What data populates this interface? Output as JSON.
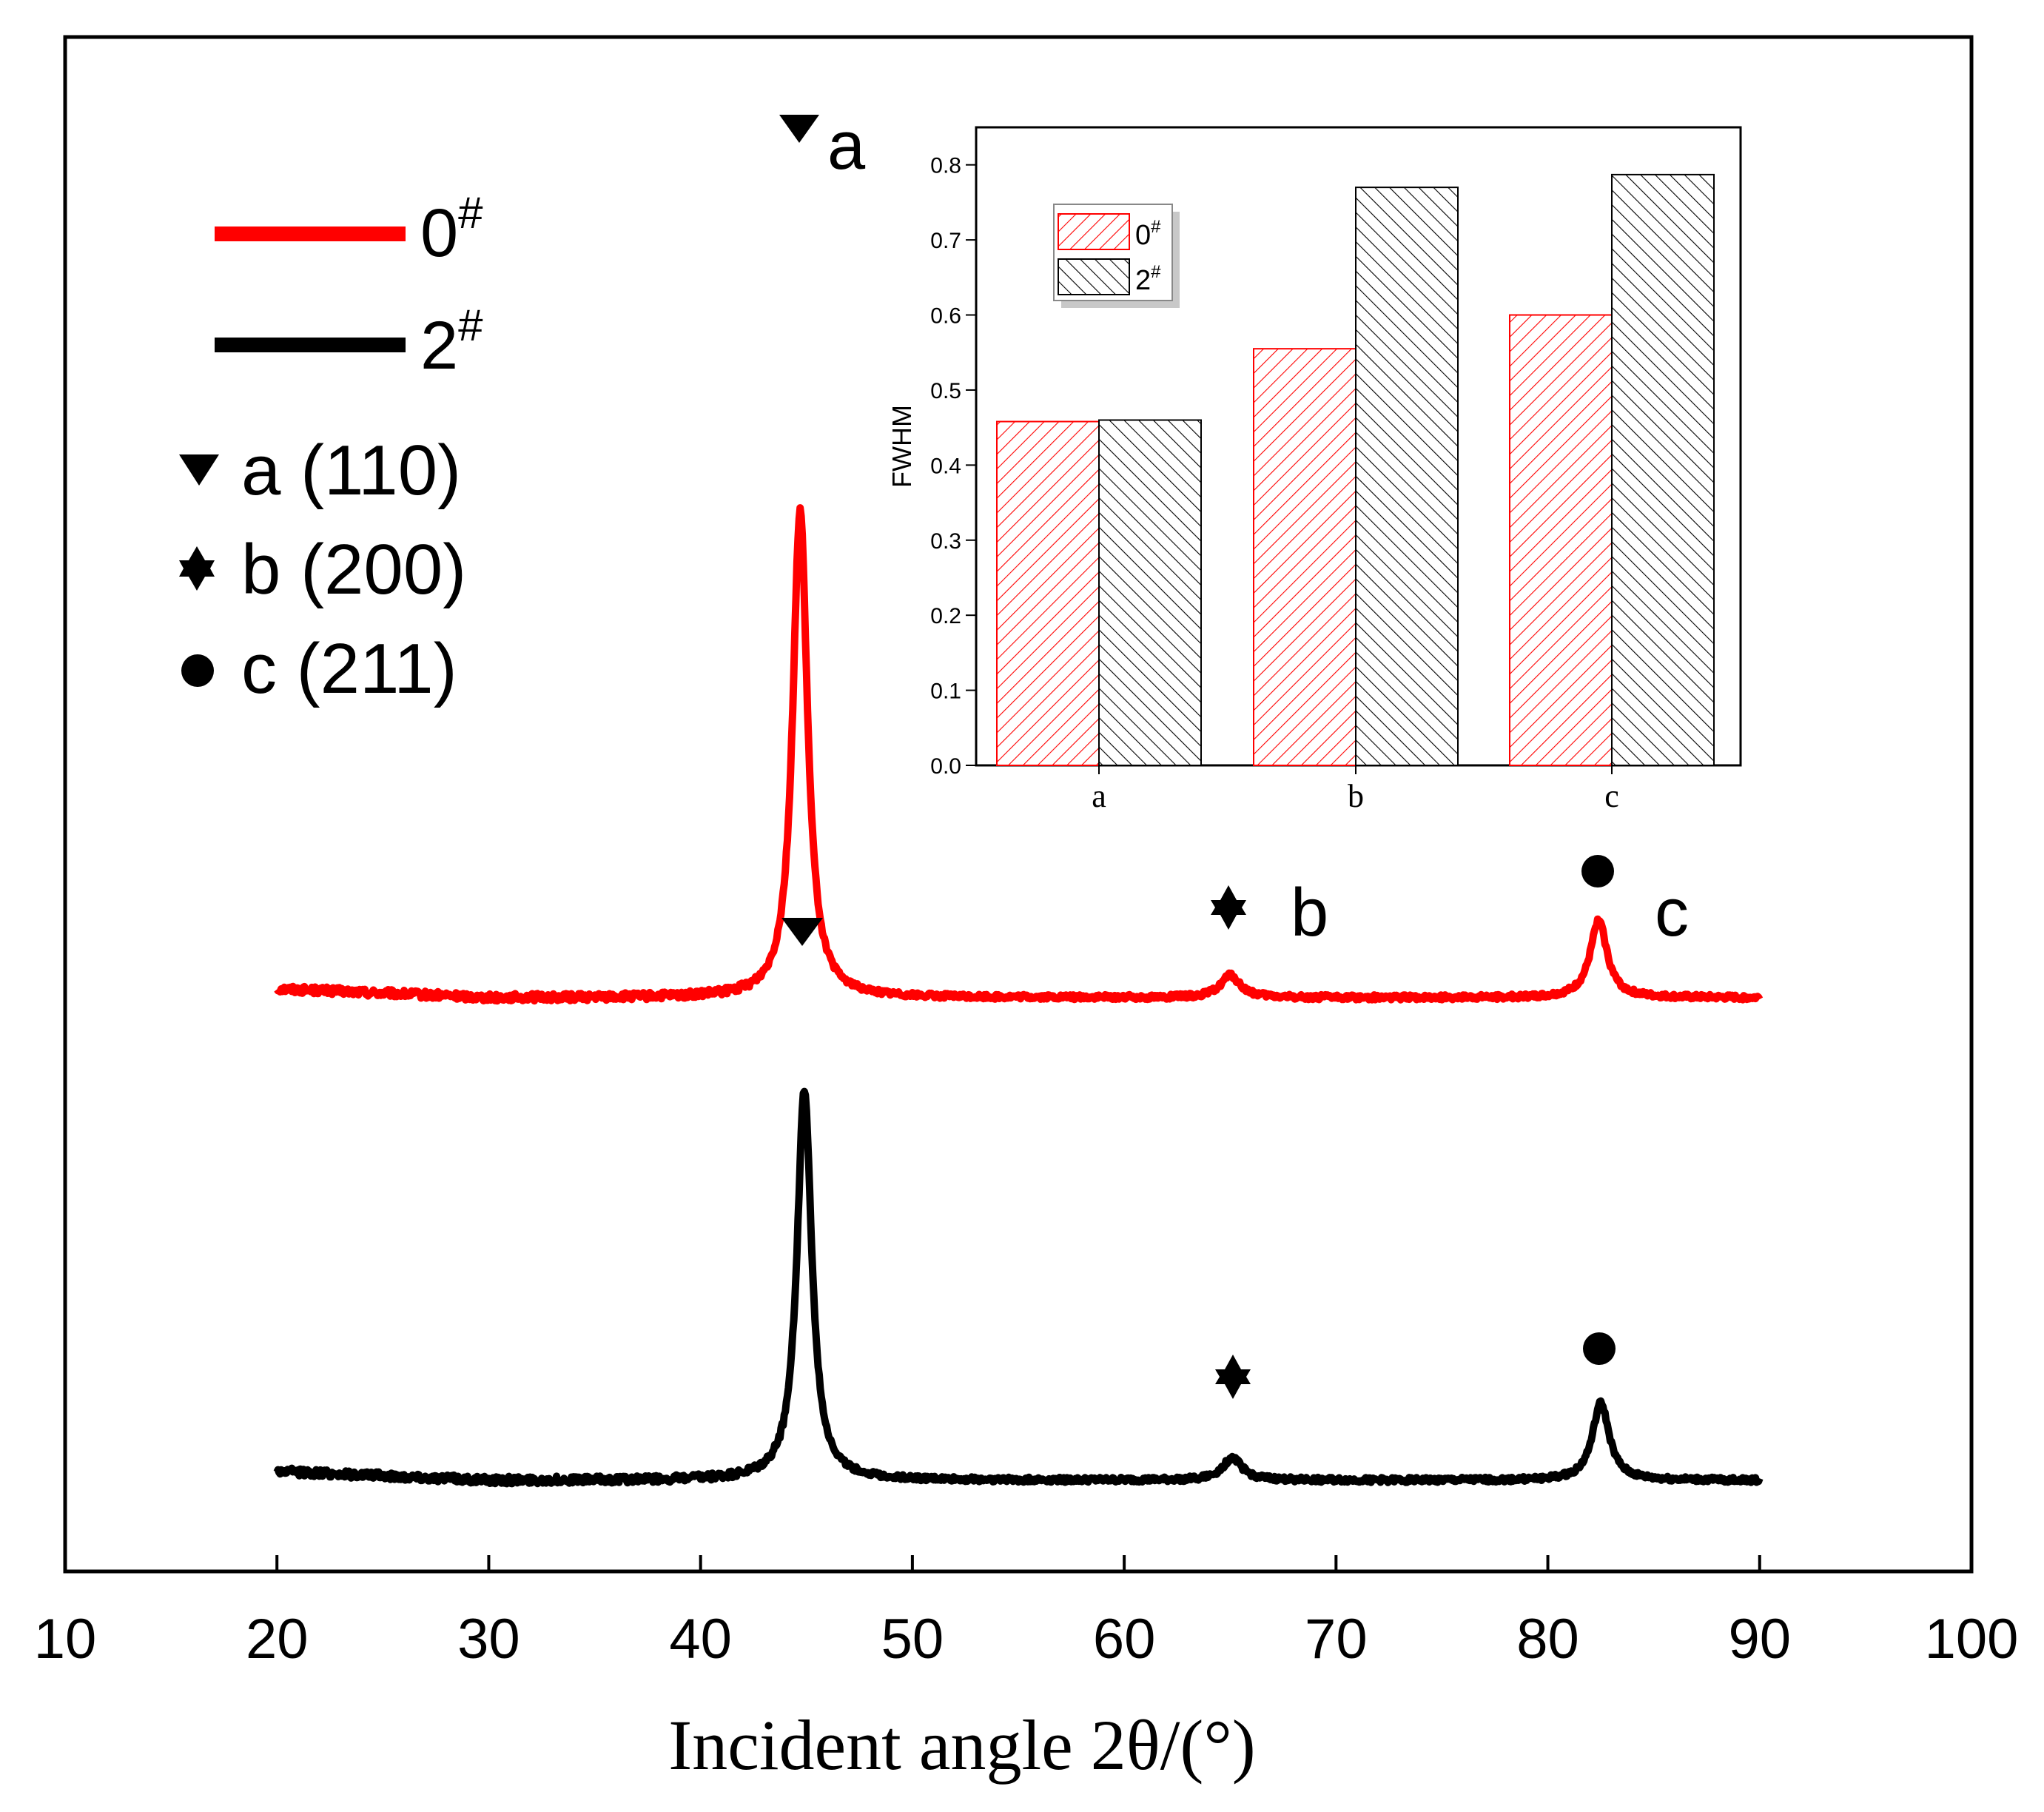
{
  "chart_data": {
    "type": "line",
    "xlabel": "Incident angle 2θ/(°)",
    "ylabel": "",
    "xlim": [
      10,
      100
    ],
    "xticks": [
      10,
      20,
      30,
      40,
      50,
      60,
      70,
      80,
      90,
      100
    ],
    "y_ticks_shown": false,
    "series": [
      {
        "name": "0#",
        "label_main": "0",
        "label_sup": "#",
        "color": "#ff0000",
        "x_range": [
          20,
          90
        ],
        "baseline_rel": [
          [
            20,
            0.0
          ],
          [
            45,
            0.0
          ],
          [
            90,
            0.0
          ]
        ],
        "peaks": [
          {
            "x": 44.7,
            "height": 12.0,
            "label": "a"
          },
          {
            "x": 65.0,
            "height": 0.55,
            "label": "b"
          },
          {
            "x": 82.4,
            "height": 1.9,
            "label": "c"
          }
        ]
      },
      {
        "name": "2#",
        "label_main": "2",
        "label_sup": "#",
        "color": "#000000",
        "x_range": [
          20,
          90
        ],
        "baseline_rel": [
          [
            20,
            0.0
          ],
          [
            45,
            0.0
          ],
          [
            90,
            0.0
          ]
        ],
        "peaks": [
          {
            "x": 44.9,
            "height": 9.6,
            "label": "a"
          },
          {
            "x": 65.1,
            "height": 0.55,
            "label": "b"
          },
          {
            "x": 82.5,
            "height": 1.9,
            "label": "c"
          }
        ]
      }
    ],
    "legend": {
      "position": "top-left",
      "markers": [
        {
          "symbol": "triangle-down-icon",
          "text": "a (110)"
        },
        {
          "symbol": "star-icon",
          "text": "b (200)"
        },
        {
          "symbol": "circle-icon",
          "text": "c (211)"
        }
      ]
    },
    "annotations": {
      "a": "a",
      "b": "b",
      "c": "c"
    },
    "inset": {
      "type": "bar",
      "position": "top-right",
      "ylabel": "FWHM",
      "ylim": [
        0.0,
        0.85
      ],
      "yticks": [
        "0.0",
        "0.1",
        "0.2",
        "0.3",
        "0.4",
        "0.5",
        "0.6",
        "0.7",
        "0.8"
      ],
      "categories": [
        "a",
        "b",
        "c"
      ],
      "series": [
        {
          "name": "0#",
          "label_main": "0",
          "label_sup": "#",
          "color": "#ff0000",
          "values": [
            0.458,
            0.555,
            0.6
          ]
        },
        {
          "name": "2#",
          "label_main": "2",
          "label_sup": "#",
          "color": "#000000",
          "values": [
            0.46,
            0.77,
            0.787
          ]
        }
      ]
    }
  }
}
